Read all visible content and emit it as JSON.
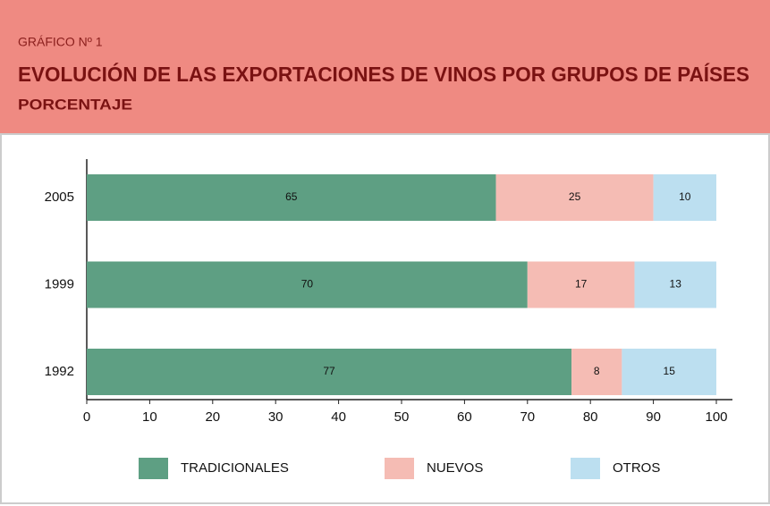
{
  "chart_data": {
    "type": "stacked_barh",
    "label": "GRÁFICO Nº 1",
    "title": "EVOLUCIÓN DE LAS EXPORTACIONES DE VINOS POR GRUPOS DE PAÍSES",
    "subtitle": "PORCENTAJE",
    "categories": [
      "2005",
      "1999",
      "1992"
    ],
    "series": [
      {
        "name": "TRADICIONALES",
        "color": "#5e9f83",
        "values": [
          65,
          70,
          77
        ]
      },
      {
        "name": "NUEVOS",
        "color": "#f5bcb4",
        "values": [
          25,
          17,
          8
        ]
      },
      {
        "name": "OTROS",
        "color": "#bcdff0",
        "values": [
          10,
          13,
          15
        ]
      }
    ],
    "xlim": [
      0,
      100
    ],
    "xticks": [
      0,
      10,
      20,
      30,
      40,
      50,
      60,
      70,
      80,
      90,
      100
    ],
    "legend": "bottom",
    "data_labels": true
  }
}
